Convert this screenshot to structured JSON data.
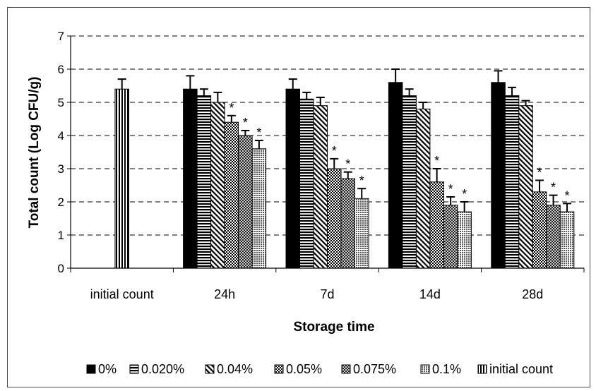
{
  "chart_data": {
    "type": "bar",
    "title": "",
    "xlabel": "Storage time",
    "ylabel": "Total count (Log CFU/g)",
    "ylim": [
      0,
      7
    ],
    "yticks": [
      0,
      1,
      2,
      3,
      4,
      5,
      6,
      7
    ],
    "grid": "dashed horizontal",
    "legend_position": "bottom",
    "categories": [
      "initial count",
      "24h",
      "7d",
      "14d",
      "28d"
    ],
    "series": [
      {
        "name": "0%",
        "pattern": "solid",
        "values": [
          null,
          5.4,
          5.4,
          5.6,
          5.6
        ],
        "errors": [
          null,
          0.4,
          0.3,
          0.4,
          0.35
        ],
        "stars": [
          false,
          false,
          false,
          false,
          false
        ]
      },
      {
        "name": "0.020%",
        "pattern": "hlines-thick",
        "values": [
          null,
          5.2,
          5.1,
          5.2,
          5.2
        ],
        "errors": [
          null,
          0.2,
          0.2,
          0.2,
          0.25
        ],
        "stars": [
          false,
          false,
          false,
          false,
          false
        ]
      },
      {
        "name": "0.04%",
        "pattern": "diagonal",
        "values": [
          null,
          5.0,
          4.9,
          4.8,
          4.9
        ],
        "errors": [
          null,
          0.3,
          0.25,
          0.2,
          0.15
        ],
        "stars": [
          false,
          false,
          false,
          false,
          false
        ]
      },
      {
        "name": "0.05%",
        "pattern": "checker",
        "values": [
          null,
          4.4,
          3.0,
          2.6,
          2.3
        ],
        "errors": [
          null,
          0.2,
          0.3,
          0.4,
          0.35
        ],
        "stars": [
          false,
          true,
          true,
          true,
          true
        ]
      },
      {
        "name": "0.075%",
        "pattern": "crosshatch",
        "values": [
          null,
          4.0,
          2.7,
          1.9,
          1.9
        ],
        "errors": [
          null,
          0.15,
          0.2,
          0.25,
          0.3
        ],
        "stars": [
          false,
          true,
          true,
          true,
          true
        ]
      },
      {
        "name": "0.1%",
        "pattern": "dotted",
        "values": [
          null,
          3.6,
          2.1,
          1.7,
          1.7
        ],
        "errors": [
          null,
          0.25,
          0.3,
          0.3,
          0.25
        ],
        "stars": [
          false,
          true,
          true,
          true,
          true
        ]
      },
      {
        "name": "initial count",
        "pattern": "vlines",
        "values": [
          5.4,
          null,
          null,
          null,
          null
        ],
        "errors": [
          0.3,
          null,
          null,
          null,
          null
        ],
        "stars": [
          false,
          false,
          false,
          false,
          false
        ]
      }
    ],
    "star_symbol": "*"
  }
}
